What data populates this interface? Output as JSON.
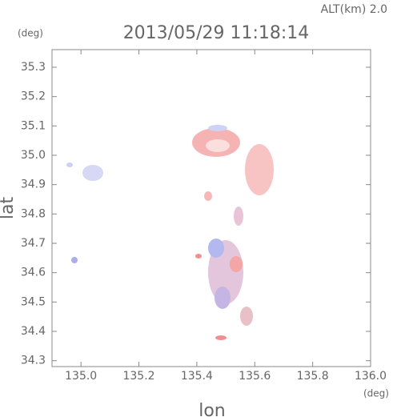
{
  "chart_data": {
    "type": "scatter",
    "title": "2013/05/29 11:18:14",
    "subtitle": "ALT(km) 2.0",
    "x_label": "lon",
    "y_label": "lat",
    "x_unit": "(deg)",
    "y_unit": "(deg)",
    "xlim": [
      134.9,
      136.0
    ],
    "xticks": [
      {
        "value": 135,
        "label": "135.0"
      },
      135.2,
      135.4,
      135.6,
      135.8,
      {
        "value": 136,
        "label": "136.0"
      }
    ],
    "ylim": [
      34.28,
      35.36
    ],
    "yticks": [
      34.3,
      34.4,
      34.5,
      34.6,
      34.7,
      34.8,
      34.9,
      {
        "value": 35,
        "label": "35.0"
      },
      35.1,
      35.2,
      35.3
    ]
  }
}
